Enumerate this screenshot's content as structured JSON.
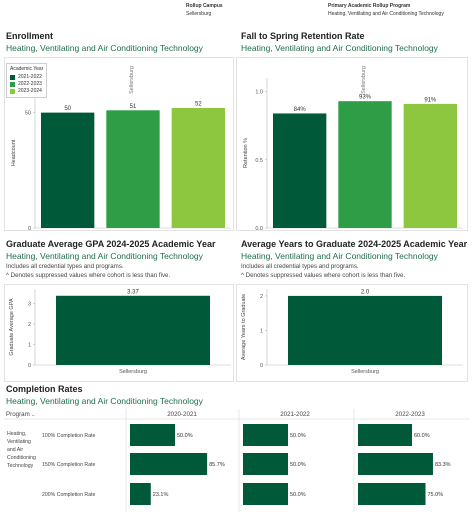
{
  "header": {
    "campus_label": "Rollup Campus",
    "campus_value": "Sellersburg",
    "program_label": "Primary Academic Rollup Program",
    "program_value": "Heating, Ventilating and Air Conditioning Technology"
  },
  "colors": {
    "year_2021": "#005a3a",
    "year_2022": "#2f9d46",
    "year_2023": "#8dc63f",
    "accent_text": "#1f6f4a"
  },
  "enrollment": {
    "title": "Enrollment",
    "subtitle": "Heating, Ventilating and Air Conditioning Technology",
    "legend_title": "Academic Year",
    "column_header": "Sellersburg",
    "ylabel": "Headcount"
  },
  "retention": {
    "title": "Fall to Spring Retention Rate",
    "subtitle": "Heating, Ventilating and Air Conditioning Technology",
    "column_header": "Sellersburg",
    "ylabel": "Retention %"
  },
  "gpa": {
    "title": "Graduate Average GPA 2024-2025 Academic Year",
    "subtitle": "Heating, Ventilating and Air Conditioning Technology",
    "note1": "Includes all credential types and programs.",
    "note2": "^ Denotes suppressed values where cohort is less than five.",
    "ylabel": "Graduate Average GPA"
  },
  "years": {
    "title": "Average Years to Graduate 2024-2025 Academic Year",
    "subtitle": "Heating, Ventilating and Air Conditioning Technology",
    "note1": "Includes all credential types and programs.",
    "note2": "^ Denotes suppressed values where cohort is less than five.",
    "ylabel": "Average Years to Graduate"
  },
  "completion": {
    "title": "Completion Rates",
    "subtitle": "Heating, Ventilating and Air Conditioning Technology",
    "program_header": "Program ..",
    "program_name_lines": [
      "Heating,",
      "Ventilating",
      "and Air",
      "Conditioning",
      "Technology"
    ]
  },
  "chart_data": [
    {
      "type": "bar",
      "categories": [
        "2021-2022",
        "2022-2023",
        "2023-2024"
      ],
      "series_names": [
        "2021-2022",
        "2022-2023",
        "2023-2024"
      ],
      "values": [
        50,
        51,
        52
      ],
      "value_labels": [
        "50",
        "51",
        "52"
      ],
      "yticks": [
        "0",
        "50"
      ],
      "ylim": [
        0,
        65
      ]
    },
    {
      "type": "bar",
      "categories": [
        "2021-2022",
        "2022-2023",
        "2023-2024"
      ],
      "values": [
        0.84,
        0.93,
        0.91
      ],
      "value_labels": [
        "84%",
        "93%",
        "91%"
      ],
      "yticks": [
        "0.0",
        "0.5",
        "1.0"
      ],
      "ylim": [
        0,
        1.1
      ]
    },
    {
      "type": "bar",
      "categories": [
        "Sellersburg"
      ],
      "values": [
        3.37
      ],
      "value_labels": [
        "3.37"
      ],
      "yticks": [
        "0",
        "1",
        "2",
        "3"
      ],
      "ylim": [
        0,
        3.7
      ]
    },
    {
      "type": "bar",
      "categories": [
        "Sellersburg"
      ],
      "values": [
        2.0
      ],
      "value_labels": [
        "2.0"
      ],
      "yticks": [
        "0",
        "1",
        "2"
      ],
      "ylim": [
        0,
        2.2
      ]
    },
    {
      "type": "bar",
      "orientation": "horizontal",
      "columns": [
        "2020-2021",
        "2021-2022",
        "2022-2023"
      ],
      "rows": [
        "100% Completion Rate",
        "150% Completion Rate",
        "200% Completion Rate"
      ],
      "values": [
        [
          0.5,
          0.5,
          0.6
        ],
        [
          0.857,
          0.5,
          0.833
        ],
        [
          0.231,
          0.5,
          0.75
        ]
      ],
      "value_labels": [
        [
          "50.0%",
          "50.0%",
          "60.0%"
        ],
        [
          "85.7%",
          "50.0%",
          "83.3%"
        ],
        [
          "23.1%",
          "50.0%",
          "75.0%"
        ]
      ],
      "xlim": [
        0,
        1
      ]
    }
  ]
}
